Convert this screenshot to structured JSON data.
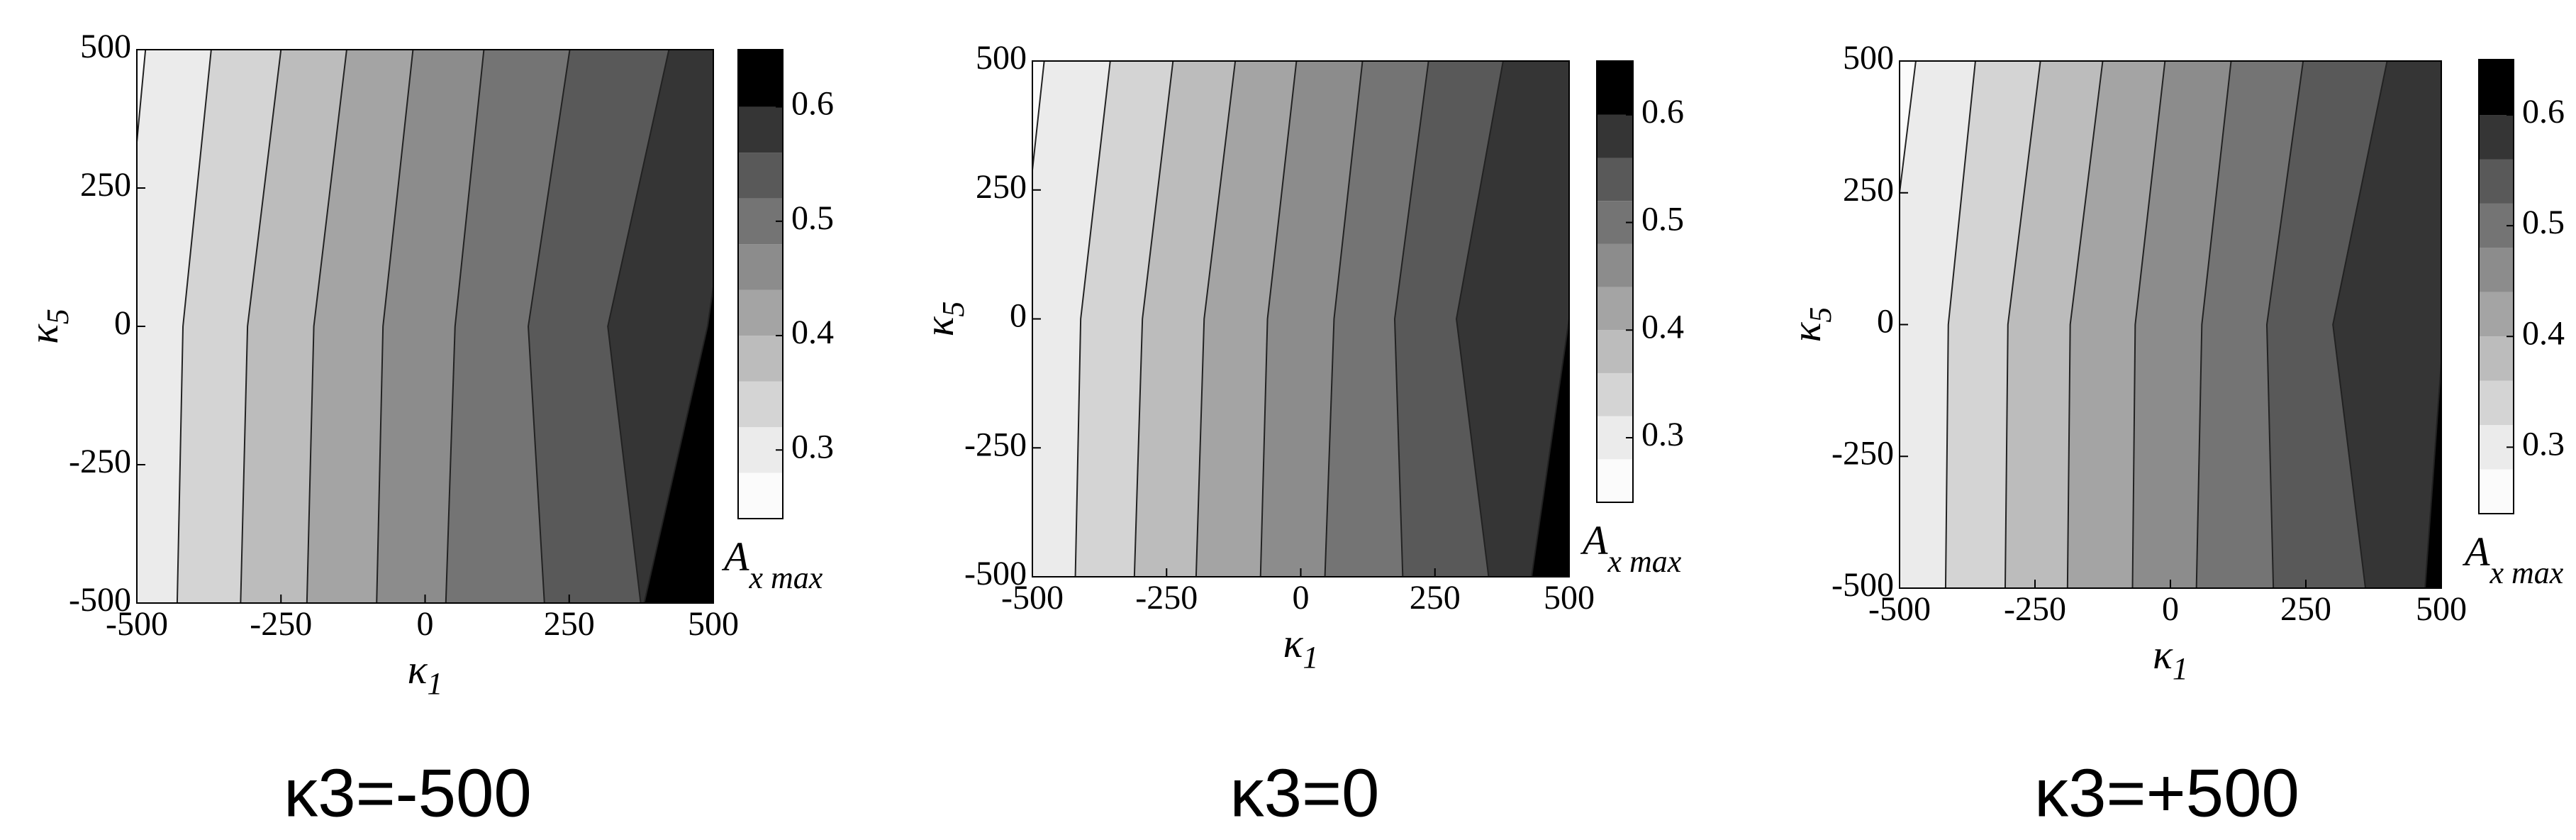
{
  "chart_data": [
    {
      "type": "contour",
      "caption": "κ3=-500",
      "x_label": "κ",
      "x_label_sub": "1",
      "y_label": "κ",
      "y_label_sub": "5",
      "colorbar_label": "A",
      "colorbar_label_sub": "x max",
      "xlim": [
        -500,
        500
      ],
      "ylim": [
        -500,
        500
      ],
      "xticks": [
        -500,
        -250,
        0,
        250,
        500
      ],
      "yticks": [
        -500,
        -250,
        0,
        250,
        500
      ],
      "clim": [
        0.24,
        0.65
      ],
      "cticks": [
        0.3,
        0.4,
        0.5,
        0.6
      ],
      "levels": [
        0.28,
        0.32,
        0.36,
        0.4,
        0.44,
        0.48,
        0.52,
        0.56,
        0.6
      ],
      "colors": [
        "#fbfbfb",
        "#ebebeb",
        "#d4d4d4",
        "#bcbcbc",
        "#a4a4a4",
        "#8c8c8c",
        "#747474",
        "#595959",
        "#353535",
        "#000000"
      ],
      "contour_k5": [
        500,
        0,
        -500
      ],
      "contours": [
        [
          -485,
          -530,
          -590
        ],
        [
          -371,
          -420,
          -430
        ],
        [
          -250,
          -308,
          -320
        ],
        [
          -136,
          -193,
          -205
        ],
        [
          -21,
          -73,
          -84
        ],
        [
          102,
          52,
          36
        ],
        [
          251,
          179,
          207
        ],
        [
          423,
          317,
          374
        ],
        [
          560,
          490,
          380
        ]
      ]
    },
    {
      "type": "contour",
      "caption": "κ3=0",
      "x_label": "κ",
      "x_label_sub": "1",
      "y_label": "κ",
      "y_label_sub": "5",
      "colorbar_label": "A",
      "colorbar_label_sub": "x max",
      "xlim": [
        -500,
        500
      ],
      "ylim": [
        -500,
        500
      ],
      "xticks": [
        -500,
        -250,
        0,
        250,
        500
      ],
      "yticks": [
        -500,
        -250,
        0,
        250,
        500
      ],
      "clim": [
        0.24,
        0.65
      ],
      "cticks": [
        0.3,
        0.4,
        0.5,
        0.6
      ],
      "levels": [
        0.28,
        0.32,
        0.36,
        0.4,
        0.44,
        0.48,
        0.52,
        0.56,
        0.6
      ],
      "colors": [
        "#fbfbfb",
        "#ebebeb",
        "#d4d4d4",
        "#bcbcbc",
        "#a4a4a4",
        "#8c8c8c",
        "#747474",
        "#595959",
        "#353535",
        "#000000"
      ],
      "contour_k5": [
        500,
        0,
        -500
      ],
      "contours": [
        [
          -478,
          -530,
          -590
        ],
        [
          -355,
          -410,
          -420
        ],
        [
          -238,
          -295,
          -310
        ],
        [
          -122,
          -180,
          -195
        ],
        [
          -8,
          -62,
          -75
        ],
        [
          115,
          62,
          45
        ],
        [
          238,
          175,
          190
        ],
        [
          377,
          290,
          350
        ],
        [
          560,
          500,
          430
        ]
      ]
    },
    {
      "type": "contour",
      "caption": "κ3=+500",
      "x_label": "κ",
      "x_label_sub": "1",
      "y_label": "κ",
      "y_label_sub": "5",
      "colorbar_label": "A",
      "colorbar_label_sub": "x max",
      "xlim": [
        -500,
        500
      ],
      "ylim": [
        -500,
        500
      ],
      "xticks": [
        -500,
        -250,
        0,
        250,
        500
      ],
      "yticks": [
        -500,
        -250,
        0,
        250,
        500
      ],
      "clim": [
        0.24,
        0.65
      ],
      "cticks": [
        0.3,
        0.4,
        0.5,
        0.6
      ],
      "levels": [
        0.28,
        0.32,
        0.36,
        0.4,
        0.44,
        0.48,
        0.52,
        0.56,
        0.6
      ],
      "colors": [
        "#fbfbfb",
        "#ebebeb",
        "#d4d4d4",
        "#bcbcbc",
        "#a4a4a4",
        "#8c8c8c",
        "#747474",
        "#595959",
        "#353535",
        "#000000"
      ],
      "contour_k5": [
        500,
        0,
        -500
      ],
      "contours": [
        [
          -470,
          -530,
          -600
        ],
        [
          -360,
          -410,
          -415
        ],
        [
          -240,
          -300,
          -305
        ],
        [
          -125,
          -185,
          -190
        ],
        [
          -10,
          -65,
          -70
        ],
        [
          112,
          58,
          48
        ],
        [
          245,
          178,
          190
        ],
        [
          400,
          300,
          360
        ],
        [
          580,
          505,
          470
        ]
      ]
    }
  ]
}
